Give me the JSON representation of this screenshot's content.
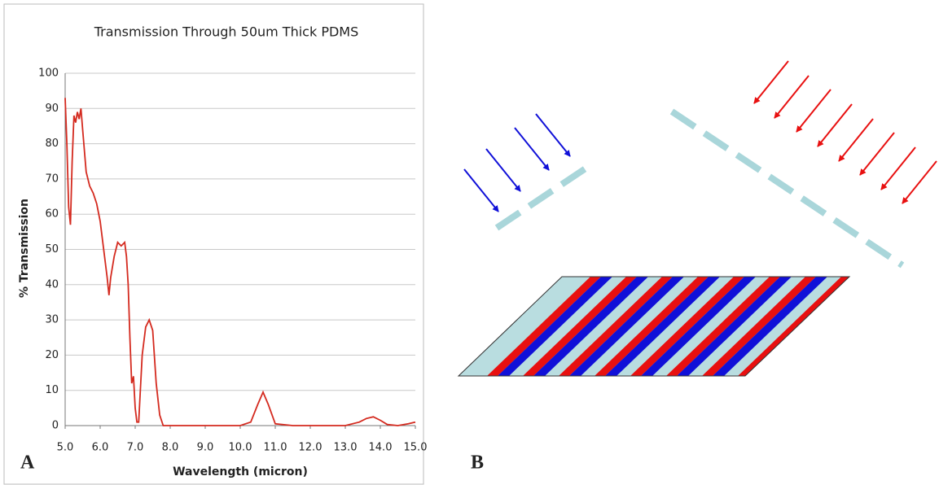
{
  "chart_data": {
    "type": "line",
    "title": "Transmission Through 50um Thick PDMS",
    "x_label": "Wavelength (micron)",
    "y_label": "% Transmission",
    "x": [
      5.0,
      5.05,
      5.1,
      5.15,
      5.2,
      5.25,
      5.3,
      5.35,
      5.4,
      5.45,
      5.5,
      5.6,
      5.7,
      5.8,
      5.9,
      6.0,
      6.1,
      6.2,
      6.25,
      6.3,
      6.4,
      6.5,
      6.6,
      6.7,
      6.75,
      6.8,
      6.85,
      6.9,
      6.95,
      7.0,
      7.05,
      7.1,
      7.2,
      7.3,
      7.4,
      7.5,
      7.6,
      7.7,
      7.8,
      8.0,
      9.0,
      10.0,
      10.3,
      10.5,
      10.65,
      10.8,
      11.0,
      11.5,
      12.0,
      13.0,
      13.4,
      13.6,
      13.8,
      14.0,
      14.2,
      14.5,
      14.8,
      15.0
    ],
    "values": [
      93,
      80,
      62,
      57,
      75,
      88,
      86,
      89,
      87,
      90,
      84,
      72,
      68,
      66,
      63,
      58,
      50,
      42,
      37,
      42,
      48,
      52,
      51,
      52,
      48,
      40,
      25,
      12,
      14,
      5,
      1,
      1,
      20,
      28,
      30,
      27,
      12,
      3,
      0,
      0,
      0,
      0,
      1,
      6,
      9.5,
      6,
      0.5,
      0,
      0,
      0,
      1,
      2,
      2.5,
      1.5,
      0.3,
      0,
      0.5,
      1
    ],
    "color": "#d42a1f",
    "xlim": [
      5,
      15
    ],
    "xticks": [
      {
        "value": 5,
        "label": "5.0"
      },
      {
        "value": 6,
        "label": "6.0"
      },
      {
        "value": 7,
        "label": "7.0"
      },
      {
        "value": 8,
        "label": "8.0"
      },
      {
        "value": 9,
        "label": "9.0"
      },
      {
        "value": 10,
        "label": "10.0"
      },
      {
        "value": 11,
        "label": "11.0"
      },
      {
        "value": 12,
        "label": "12.0"
      },
      {
        "value": 13,
        "label": "13.0"
      },
      {
        "value": 14,
        "label": "14.0"
      },
      {
        "value": 15,
        "label": "15.0"
      }
    ],
    "ylim": [
      0,
      100
    ],
    "yticks": [
      0,
      10,
      20,
      30,
      40,
      50,
      60,
      70,
      80,
      90,
      100
    ],
    "grid": true
  },
  "panel_labels": [
    "A",
    "B"
  ]
}
